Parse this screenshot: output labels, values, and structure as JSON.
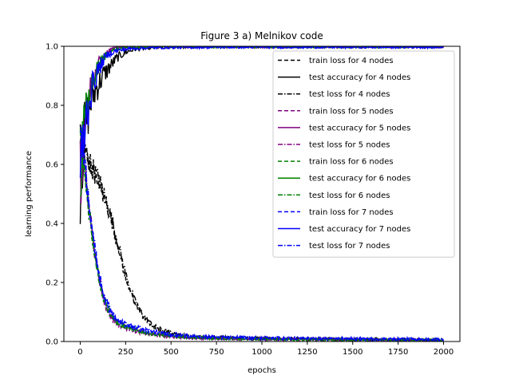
{
  "chart_data": {
    "type": "line",
    "title": "Figure 3 a) Melnikov code",
    "xlabel": "epochs",
    "ylabel": "learning performance",
    "xlim": [
      -90,
      2090
    ],
    "ylim": [
      0,
      1
    ],
    "xticks": [
      0,
      250,
      500,
      750,
      1000,
      1250,
      1500,
      1750,
      2000
    ],
    "yticks": [
      0.0,
      0.2,
      0.4,
      0.6,
      0.8,
      1.0
    ],
    "grid": false,
    "legend_position": "top-right",
    "series": [
      {
        "name": "train loss for 4 nodes",
        "color": "#000000",
        "dash": "dashed",
        "kind": "loss",
        "x": [
          0,
          25,
          50,
          75,
          100,
          125,
          150,
          175,
          200,
          225,
          250,
          275,
          300,
          350,
          400,
          450,
          500,
          600,
          750,
          1000,
          1250,
          1500,
          1750,
          2000
        ],
        "y": [
          0.72,
          0.64,
          0.6,
          0.57,
          0.54,
          0.5,
          0.45,
          0.4,
          0.34,
          0.28,
          0.22,
          0.17,
          0.13,
          0.08,
          0.05,
          0.035,
          0.025,
          0.018,
          0.013,
          0.01,
          0.008,
          0.007,
          0.006,
          0.005
        ]
      },
      {
        "name": "test accuracy for 4 nodes",
        "color": "#000000",
        "dash": "solid",
        "kind": "accuracy",
        "x": [
          0,
          25,
          50,
          75,
          100,
          125,
          150,
          175,
          200,
          225,
          250,
          300,
          400,
          500,
          750,
          1000,
          1250,
          1500,
          1750,
          2000
        ],
        "y": [
          0.55,
          0.72,
          0.79,
          0.84,
          0.87,
          0.9,
          0.92,
          0.94,
          0.96,
          0.97,
          0.98,
          0.99,
          0.995,
          0.997,
          0.998,
          0.998,
          0.998,
          0.998,
          0.998,
          0.998
        ]
      },
      {
        "name": "test loss for 4 nodes",
        "color": "#000000",
        "dash": "dashdot",
        "kind": "loss",
        "x": [
          0,
          25,
          50,
          75,
          100,
          125,
          150,
          175,
          200,
          225,
          250,
          275,
          300,
          350,
          400,
          450,
          500,
          600,
          750,
          1000,
          1250,
          1500,
          1750,
          2000
        ],
        "y": [
          0.73,
          0.65,
          0.61,
          0.58,
          0.55,
          0.51,
          0.46,
          0.41,
          0.35,
          0.29,
          0.23,
          0.18,
          0.14,
          0.085,
          0.055,
          0.04,
          0.03,
          0.02,
          0.015,
          0.011,
          0.009,
          0.008,
          0.007,
          0.006
        ]
      },
      {
        "name": "train loss for 5 nodes",
        "color": "#800080",
        "dash": "dashed",
        "kind": "loss",
        "x": [
          0,
          25,
          50,
          75,
          100,
          125,
          150,
          175,
          200,
          250,
          300,
          350,
          400,
          500,
          600,
          750,
          1000,
          1250,
          1500,
          1750,
          2000
        ],
        "y": [
          0.7,
          0.58,
          0.44,
          0.32,
          0.22,
          0.15,
          0.1,
          0.075,
          0.06,
          0.045,
          0.035,
          0.028,
          0.022,
          0.016,
          0.012,
          0.009,
          0.007,
          0.006,
          0.005,
          0.005,
          0.004
        ]
      },
      {
        "name": "test accuracy for 5 nodes",
        "color": "#800080",
        "dash": "solid",
        "kind": "accuracy",
        "x": [
          0,
          25,
          50,
          75,
          100,
          125,
          150,
          175,
          200,
          250,
          300,
          400,
          500,
          750,
          1000,
          1250,
          1500,
          1750,
          2000
        ],
        "y": [
          0.55,
          0.75,
          0.84,
          0.9,
          0.94,
          0.96,
          0.98,
          0.99,
          0.995,
          0.997,
          0.998,
          0.998,
          0.998,
          0.998,
          0.998,
          0.998,
          0.998,
          0.998,
          0.998
        ]
      },
      {
        "name": "test loss for 5 nodes",
        "color": "#800080",
        "dash": "dashdot",
        "kind": "loss",
        "x": [
          0,
          25,
          50,
          75,
          100,
          125,
          150,
          175,
          200,
          250,
          300,
          350,
          400,
          500,
          600,
          750,
          1000,
          1250,
          1500,
          1750,
          2000
        ],
        "y": [
          0.71,
          0.59,
          0.45,
          0.33,
          0.23,
          0.16,
          0.11,
          0.08,
          0.065,
          0.05,
          0.04,
          0.032,
          0.026,
          0.019,
          0.014,
          0.011,
          0.009,
          0.008,
          0.007,
          0.006,
          0.005
        ]
      },
      {
        "name": "train loss for 6 nodes",
        "color": "#008000",
        "dash": "dashed",
        "kind": "loss",
        "x": [
          0,
          25,
          50,
          75,
          100,
          125,
          150,
          175,
          200,
          250,
          300,
          350,
          400,
          500,
          600,
          750,
          1000,
          1250,
          1500,
          1750,
          2000
        ],
        "y": [
          0.7,
          0.57,
          0.43,
          0.31,
          0.22,
          0.15,
          0.11,
          0.08,
          0.065,
          0.048,
          0.038,
          0.03,
          0.024,
          0.017,
          0.013,
          0.01,
          0.008,
          0.006,
          0.005,
          0.005,
          0.004
        ]
      },
      {
        "name": "test accuracy for 6 nodes",
        "color": "#008000",
        "dash": "solid",
        "kind": "accuracy",
        "x": [
          0,
          25,
          50,
          75,
          100,
          125,
          150,
          175,
          200,
          250,
          300,
          400,
          500,
          750,
          1000,
          1250,
          1500,
          1750,
          2000
        ],
        "y": [
          0.54,
          0.74,
          0.83,
          0.89,
          0.93,
          0.96,
          0.975,
          0.985,
          0.99,
          0.995,
          0.997,
          0.998,
          0.998,
          0.998,
          0.998,
          0.998,
          0.998,
          0.998,
          0.998
        ]
      },
      {
        "name": "test loss for 6 nodes",
        "color": "#008000",
        "dash": "dashdot",
        "kind": "loss",
        "x": [
          0,
          25,
          50,
          75,
          100,
          125,
          150,
          175,
          200,
          250,
          300,
          350,
          400,
          500,
          600,
          750,
          1000,
          1250,
          1500,
          1750,
          2000
        ],
        "y": [
          0.71,
          0.58,
          0.44,
          0.32,
          0.23,
          0.16,
          0.12,
          0.09,
          0.07,
          0.052,
          0.041,
          0.033,
          0.027,
          0.02,
          0.015,
          0.012,
          0.009,
          0.008,
          0.007,
          0.006,
          0.005
        ]
      },
      {
        "name": "train loss for 7 nodes",
        "color": "#0000ff",
        "dash": "dashed",
        "kind": "loss",
        "x": [
          0,
          25,
          50,
          75,
          100,
          125,
          150,
          175,
          200,
          250,
          300,
          350,
          400,
          500,
          600,
          750,
          1000,
          1250,
          1500,
          1750,
          2000
        ],
        "y": [
          0.72,
          0.6,
          0.46,
          0.33,
          0.23,
          0.16,
          0.12,
          0.09,
          0.07,
          0.055,
          0.045,
          0.037,
          0.03,
          0.022,
          0.017,
          0.013,
          0.01,
          0.009,
          0.008,
          0.007,
          0.006
        ]
      },
      {
        "name": "test accuracy for 7 nodes",
        "color": "#0000ff",
        "dash": "solid",
        "kind": "accuracy",
        "x": [
          0,
          25,
          50,
          75,
          100,
          125,
          150,
          175,
          200,
          250,
          300,
          400,
          500,
          750,
          1000,
          1250,
          1500,
          1750,
          2000
        ],
        "y": [
          0.55,
          0.73,
          0.82,
          0.88,
          0.92,
          0.95,
          0.97,
          0.98,
          0.985,
          0.99,
          0.993,
          0.995,
          0.996,
          0.997,
          0.997,
          0.997,
          0.997,
          0.997,
          0.997
        ]
      },
      {
        "name": "test loss for 7 nodes",
        "color": "#0000ff",
        "dash": "dashdot",
        "kind": "loss",
        "x": [
          0,
          25,
          50,
          75,
          100,
          125,
          150,
          175,
          200,
          250,
          300,
          350,
          400,
          500,
          600,
          750,
          1000,
          1250,
          1500,
          1750,
          2000
        ],
        "y": [
          0.73,
          0.61,
          0.47,
          0.34,
          0.24,
          0.17,
          0.13,
          0.1,
          0.08,
          0.06,
          0.05,
          0.042,
          0.035,
          0.026,
          0.02,
          0.016,
          0.013,
          0.011,
          0.01,
          0.009,
          0.008
        ]
      }
    ]
  }
}
